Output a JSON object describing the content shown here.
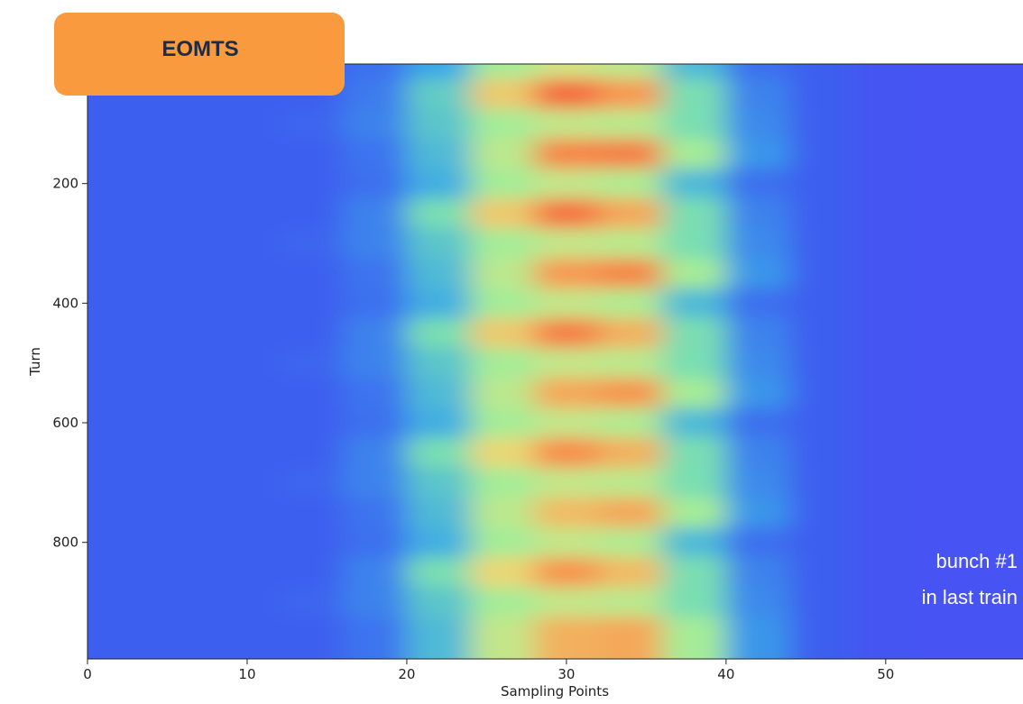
{
  "header": {
    "badge": "EOMTS"
  },
  "chart_data": {
    "type": "heatmap",
    "x_label": "Sampling Points",
    "y_label": "Turn",
    "xlim": [
      0,
      58.6
    ],
    "xticks": [
      0,
      10,
      20,
      30,
      40,
      50
    ],
    "ylim": [
      995,
      0
    ],
    "yticks": [
      200,
      400,
      600,
      800
    ],
    "x": [
      2,
      6,
      10,
      14,
      18,
      22,
      26,
      30,
      34,
      38,
      42,
      46,
      50,
      54,
      58
    ],
    "y": [
      0,
      50,
      100,
      150,
      200,
      250,
      300,
      350,
      400,
      450,
      500,
      550,
      600,
      650,
      700,
      750,
      800,
      850,
      900,
      950
    ],
    "values": [
      [
        0.1,
        0.1,
        0.1,
        0.1,
        0.15,
        0.3,
        0.55,
        0.65,
        0.6,
        0.35,
        0.15,
        0.1,
        0.06,
        0.05,
        0.05
      ],
      [
        0.1,
        0.1,
        0.1,
        0.1,
        0.18,
        0.4,
        0.75,
        0.97,
        0.85,
        0.45,
        0.2,
        0.1,
        0.06,
        0.05,
        0.05
      ],
      [
        0.1,
        0.1,
        0.1,
        0.12,
        0.2,
        0.38,
        0.55,
        0.62,
        0.6,
        0.45,
        0.22,
        0.1,
        0.06,
        0.05,
        0.05
      ],
      [
        0.1,
        0.1,
        0.1,
        0.1,
        0.16,
        0.35,
        0.6,
        0.9,
        0.92,
        0.55,
        0.25,
        0.1,
        0.06,
        0.05,
        0.05
      ],
      [
        0.1,
        0.1,
        0.1,
        0.1,
        0.15,
        0.32,
        0.55,
        0.62,
        0.58,
        0.35,
        0.15,
        0.1,
        0.06,
        0.05,
        0.05
      ],
      [
        0.1,
        0.1,
        0.1,
        0.1,
        0.2,
        0.45,
        0.75,
        0.95,
        0.82,
        0.45,
        0.2,
        0.1,
        0.06,
        0.05,
        0.05
      ],
      [
        0.1,
        0.1,
        0.1,
        0.12,
        0.2,
        0.38,
        0.55,
        0.62,
        0.6,
        0.45,
        0.22,
        0.1,
        0.06,
        0.05,
        0.05
      ],
      [
        0.1,
        0.1,
        0.1,
        0.1,
        0.16,
        0.35,
        0.6,
        0.85,
        0.9,
        0.55,
        0.25,
        0.1,
        0.06,
        0.05,
        0.05
      ],
      [
        0.1,
        0.1,
        0.1,
        0.1,
        0.15,
        0.32,
        0.55,
        0.62,
        0.58,
        0.35,
        0.15,
        0.1,
        0.06,
        0.05,
        0.05
      ],
      [
        0.1,
        0.1,
        0.1,
        0.1,
        0.2,
        0.45,
        0.75,
        0.92,
        0.8,
        0.45,
        0.2,
        0.1,
        0.06,
        0.05,
        0.05
      ],
      [
        0.1,
        0.1,
        0.1,
        0.12,
        0.2,
        0.38,
        0.55,
        0.62,
        0.6,
        0.45,
        0.22,
        0.1,
        0.06,
        0.05,
        0.05
      ],
      [
        0.1,
        0.1,
        0.1,
        0.1,
        0.16,
        0.35,
        0.6,
        0.82,
        0.86,
        0.55,
        0.25,
        0.1,
        0.06,
        0.05,
        0.05
      ],
      [
        0.1,
        0.1,
        0.1,
        0.1,
        0.15,
        0.32,
        0.55,
        0.62,
        0.58,
        0.35,
        0.15,
        0.1,
        0.06,
        0.05,
        0.05
      ],
      [
        0.1,
        0.1,
        0.1,
        0.1,
        0.2,
        0.45,
        0.72,
        0.88,
        0.8,
        0.45,
        0.2,
        0.1,
        0.06,
        0.05,
        0.05
      ],
      [
        0.1,
        0.1,
        0.1,
        0.12,
        0.2,
        0.38,
        0.55,
        0.62,
        0.6,
        0.45,
        0.22,
        0.1,
        0.06,
        0.05,
        0.05
      ],
      [
        0.1,
        0.1,
        0.1,
        0.1,
        0.16,
        0.35,
        0.6,
        0.78,
        0.82,
        0.55,
        0.25,
        0.1,
        0.06,
        0.05,
        0.05
      ],
      [
        0.1,
        0.1,
        0.1,
        0.1,
        0.15,
        0.32,
        0.55,
        0.62,
        0.58,
        0.35,
        0.15,
        0.1,
        0.06,
        0.05,
        0.05
      ],
      [
        0.1,
        0.1,
        0.1,
        0.1,
        0.2,
        0.45,
        0.72,
        0.86,
        0.78,
        0.45,
        0.2,
        0.1,
        0.06,
        0.05,
        0.05
      ],
      [
        0.1,
        0.1,
        0.1,
        0.12,
        0.2,
        0.38,
        0.55,
        0.62,
        0.6,
        0.45,
        0.22,
        0.1,
        0.06,
        0.05,
        0.05
      ],
      [
        0.1,
        0.1,
        0.1,
        0.1,
        0.16,
        0.35,
        0.62,
        0.8,
        0.82,
        0.55,
        0.25,
        0.1,
        0.06,
        0.05,
        0.05
      ]
    ],
    "annotations": [
      "bunch #1",
      "in last train"
    ]
  }
}
